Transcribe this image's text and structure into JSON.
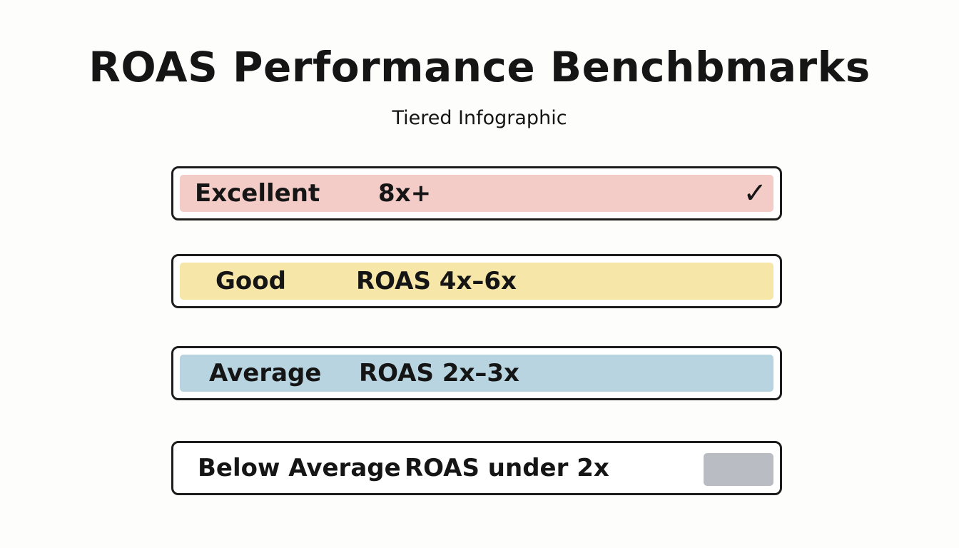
{
  "header": {
    "title": "ROAS Performance Benchbmarks",
    "subtitle": "Tiered Infographic"
  },
  "tiers": [
    {
      "label": "Excellent",
      "range": "8x+",
      "badge": "✓",
      "fill_color": "#f3cbc7"
    },
    {
      "label": "Good",
      "range": "ROAS 4x–6x",
      "fill_color": "#f6e7a8"
    },
    {
      "label": "Average",
      "range": "ROAS 2x–3x",
      "fill_color": "#b7d4e0"
    },
    {
      "label": "Below Average",
      "range": "ROAS under 2x",
      "swatch_color": "#b9bdc3"
    }
  ]
}
